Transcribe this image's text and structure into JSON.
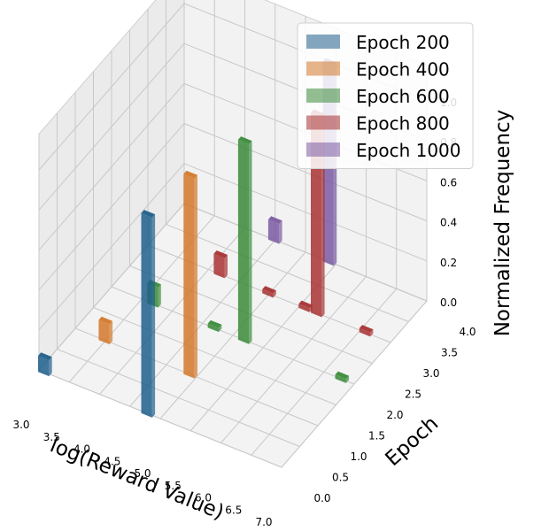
{
  "chart_data": {
    "type": "bar3d",
    "title": "",
    "xlabel": "log(Reward Value)",
    "ylabel": "Epoch",
    "zlabel": "Normalized Frequency",
    "x_ticks": [
      "3.0",
      "3.5",
      "4.0",
      "4.5",
      "5.0",
      "5.5",
      "6.0",
      "6.5",
      "7.0"
    ],
    "y_ticks": [
      "0.0",
      "0.5",
      "1.0",
      "1.5",
      "2.0",
      "2.5",
      "3.0",
      "3.5",
      "4.0"
    ],
    "z_ticks": [
      "0.0",
      "0.2",
      "0.4",
      "0.6",
      "0.8",
      "1.0"
    ],
    "xlim": [
      3.0,
      7.0
    ],
    "ylim": [
      0.0,
      4.0
    ],
    "zlim": [
      0.0,
      1.0
    ],
    "grid": true,
    "legend_position": "top-right",
    "series": [
      {
        "name": "Epoch 200",
        "color": "#1f5f8b",
        "y": 0,
        "points": [
          {
            "x": 3.1,
            "z": 0.08
          },
          {
            "x": 4.8,
            "z": 1.0
          }
        ]
      },
      {
        "name": "Epoch 400",
        "color": "#d2782a",
        "y": 1,
        "points": [
          {
            "x": 3.5,
            "z": 0.1
          },
          {
            "x": 4.9,
            "z": 1.0
          }
        ]
      },
      {
        "name": "Epoch 600",
        "color": "#3a8a3a",
        "y": 2,
        "points": [
          {
            "x": 3.7,
            "z": 0.1
          },
          {
            "x": 4.7,
            "z": 0.02
          },
          {
            "x": 5.2,
            "z": 1.0
          },
          {
            "x": 6.8,
            "z": 0.02
          }
        ]
      },
      {
        "name": "Epoch 800",
        "color": "#a83232",
        "y": 3,
        "points": [
          {
            "x": 4.2,
            "z": 0.1
          },
          {
            "x": 5.0,
            "z": 0.02
          },
          {
            "x": 5.6,
            "z": 0.02
          },
          {
            "x": 5.8,
            "z": 1.0
          },
          {
            "x": 6.6,
            "z": 0.02
          }
        ]
      },
      {
        "name": "Epoch 1000",
        "color": "#7b5ba3",
        "y": 4,
        "points": [
          {
            "x": 4.5,
            "z": 0.1
          },
          {
            "x": 5.4,
            "z": 1.0
          }
        ]
      }
    ]
  }
}
